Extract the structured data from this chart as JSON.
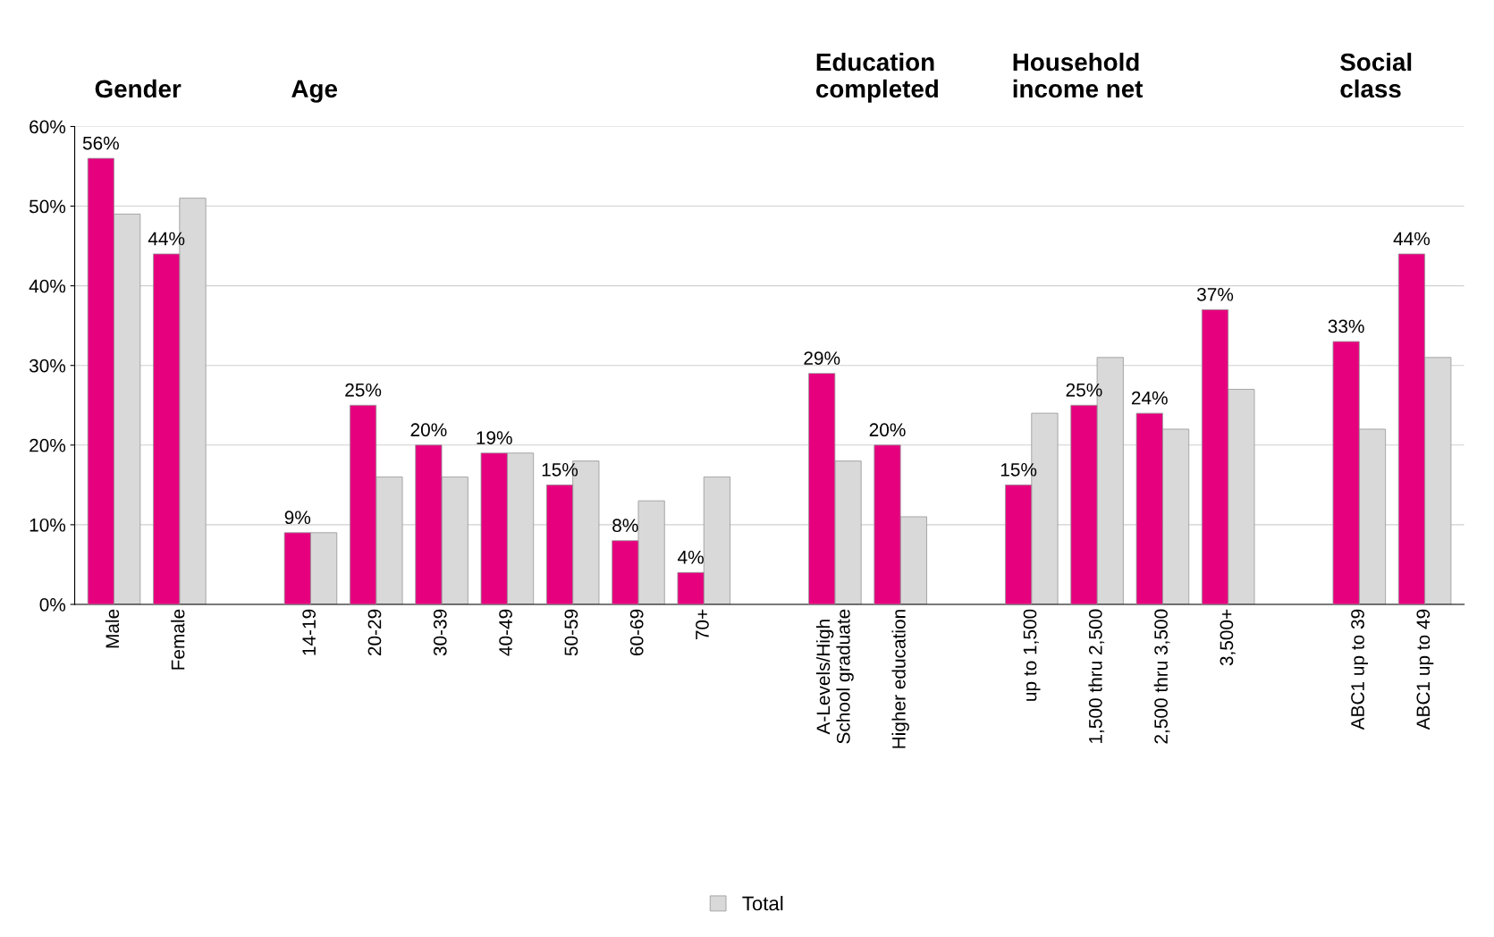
{
  "chart_data": {
    "type": "bar",
    "categories": [
      "Male",
      "Female",
      null,
      "14-19",
      "20-29",
      "30-39",
      "40-49",
      "50-59",
      "60-69",
      "70+",
      null,
      "A-Levels/High\nSchool graduate",
      "Higher education",
      null,
      "up to 1,500",
      "1,500 thru 2,500",
      "2,500 thru 3,500",
      "3,500+",
      null,
      "ABC1 up to 39",
      "ABC1 up to 49"
    ],
    "series": [
      {
        "color": "#d9d9d9",
        "name": "Total",
        "values": [
          49,
          51,
          null,
          9,
          16,
          16,
          19,
          18,
          13,
          16,
          null,
          18,
          11,
          null,
          24,
          31,
          22,
          27,
          null,
          22,
          31
        ]
      },
      {
        "color": "#e6007e",
        "values": [
          56,
          44,
          null,
          9,
          25,
          20,
          19,
          15,
          8,
          4,
          null,
          29,
          20,
          null,
          15,
          25,
          24,
          37,
          null,
          33,
          44
        ],
        "value_labels": [
          "56%",
          "44%",
          null,
          "9%",
          "25%",
          "20%",
          "19%",
          "15%",
          "8%",
          "4%",
          null,
          "29%",
          "20%",
          null,
          "15%",
          "25%",
          "24%",
          "37%",
          null,
          "33%",
          "44%"
        ]
      }
    ],
    "annotations": [
      "Gender",
      "Age",
      "Education\ncompleted",
      "Household\nincome net",
      "Social\nclass"
    ],
    "ylim": [
      0,
      60
    ],
    "yticks": [
      {
        "value": 0,
        "label": "0%"
      },
      {
        "value": 10,
        "label": "10%"
      },
      {
        "value": 20,
        "label": "20%"
      },
      {
        "value": 30,
        "label": "30%"
      },
      {
        "value": 40,
        "label": "40%"
      },
      {
        "value": 50,
        "label": "50%"
      },
      {
        "value": 60,
        "label": "60%"
      }
    ],
    "grid": "y",
    "legend": "bottom"
  }
}
